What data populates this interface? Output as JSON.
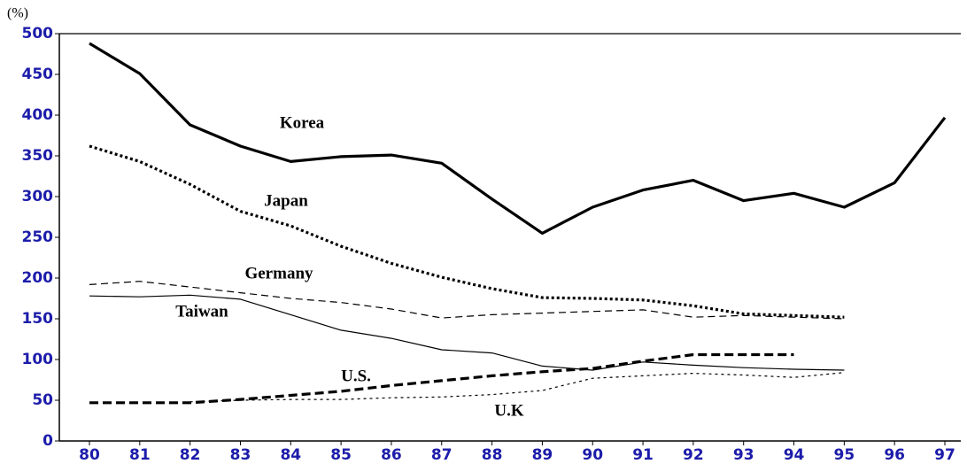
{
  "chart_data": {
    "type": "line",
    "y_label": "(%)",
    "categories": [
      "80",
      "81",
      "82",
      "83",
      "84",
      "85",
      "86",
      "87",
      "88",
      "89",
      "90",
      "91",
      "92",
      "93",
      "94",
      "95",
      "96",
      "97"
    ],
    "ylim": [
      0,
      500
    ],
    "yticks": [
      0,
      50,
      100,
      150,
      200,
      250,
      300,
      350,
      400,
      450,
      500
    ],
    "tick_color": "#1c1caa",
    "series": [
      {
        "name": "Korea",
        "color": "#000000",
        "dash": "solid",
        "weight": "bold",
        "values": [
          488,
          451,
          388,
          362,
          343,
          349,
          351,
          341,
          297,
          255,
          287,
          308,
          320,
          295,
          304,
          287,
          317,
          397
        ]
      },
      {
        "name": "Japan",
        "color": "#000000",
        "dash": "dotted",
        "weight": "bold",
        "values": [
          362,
          343,
          315,
          282,
          264,
          239,
          218,
          201,
          187,
          176,
          175,
          173,
          166,
          156,
          154,
          152,
          null,
          null
        ]
      },
      {
        "name": "Germany",
        "color": "#000000",
        "dash": "dashed",
        "weight": "normal",
        "values": [
          192,
          196,
          189,
          182,
          175,
          170,
          162,
          151,
          155,
          157,
          159,
          161,
          152,
          154,
          152,
          150,
          null,
          null
        ]
      },
      {
        "name": "Taiwan",
        "color": "#000000",
        "dash": "solid",
        "weight": "normal",
        "values": [
          178,
          177,
          179,
          174,
          155,
          136,
          126,
          112,
          108,
          92,
          87,
          97,
          93,
          90,
          88,
          87,
          null,
          null
        ]
      },
      {
        "name": "U.S.",
        "color": "#000000",
        "dash": "dashed",
        "weight": "bold",
        "values": [
          47,
          47,
          47,
          51,
          56,
          61,
          68,
          74,
          80,
          85,
          89,
          98,
          106,
          106,
          106,
          null,
          null,
          null
        ]
      },
      {
        "name": "U.K",
        "color": "#000000",
        "dash": "dotted",
        "weight": "normal",
        "values": [
          null,
          null,
          48,
          50,
          51,
          51,
          53,
          54,
          57,
          62,
          77,
          80,
          83,
          81,
          78,
          84,
          null,
          null
        ]
      }
    ]
  }
}
